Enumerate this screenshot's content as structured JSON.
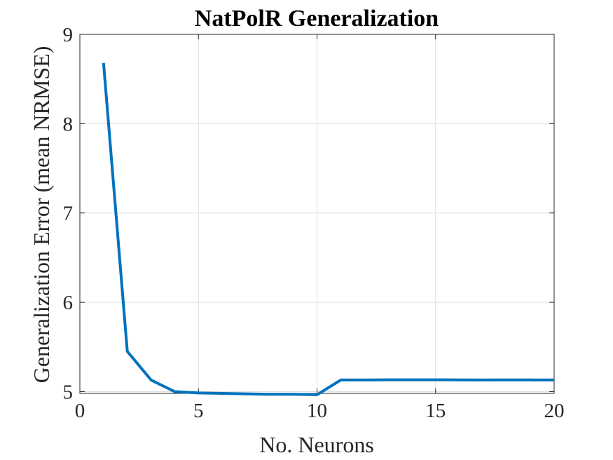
{
  "chart_data": {
    "type": "line",
    "title": "NatPolR Generalization",
    "xlabel": "No. Neurons",
    "ylabel": "Generalization Error (mean NRMSE)",
    "xlim": [
      0,
      20
    ],
    "ylim": [
      4.98,
      9
    ],
    "xticks": [
      0,
      5,
      10,
      15,
      20
    ],
    "yticks": [
      5,
      6,
      7,
      8,
      9
    ],
    "grid": true,
    "series": [
      {
        "color": "#0072bd",
        "x": [
          1,
          2,
          3,
          4,
          5,
          6,
          7,
          8,
          9,
          10,
          11,
          12,
          13,
          14,
          15,
          16,
          17,
          18,
          19,
          20
        ],
        "y": [
          8.68,
          5.45,
          5.13,
          5.0,
          4.985,
          4.98,
          4.975,
          4.97,
          4.97,
          4.965,
          5.13,
          5.13,
          5.132,
          5.132,
          5.132,
          5.131,
          5.13,
          5.131,
          5.131,
          5.13
        ]
      }
    ]
  }
}
